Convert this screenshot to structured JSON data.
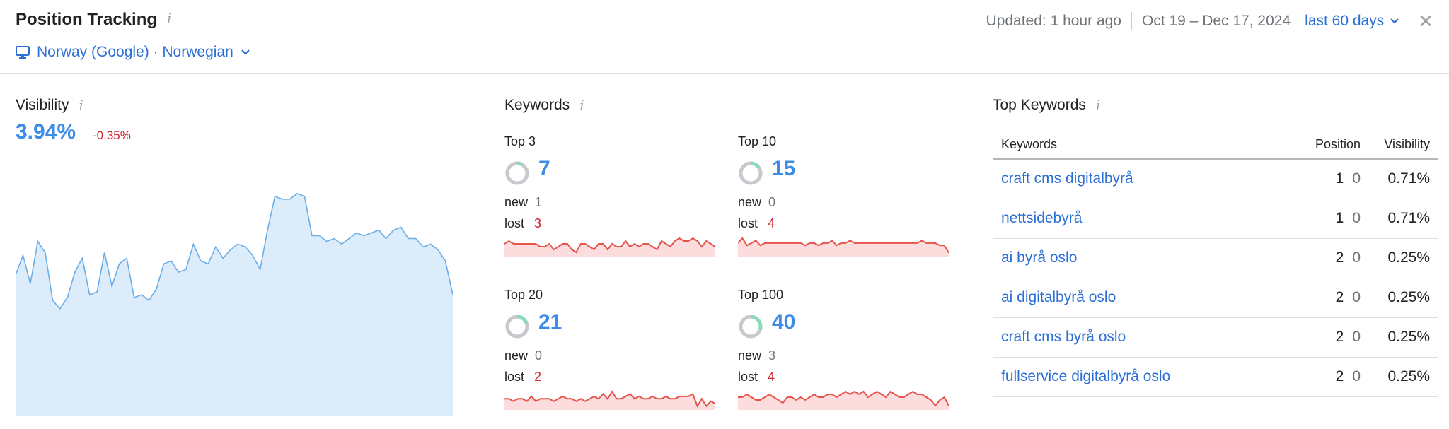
{
  "header": {
    "title": "Position Tracking",
    "location": "Norway (Google) · Norwegian",
    "updated": "Updated: 1 hour ago",
    "date_range": "Oct 19 – Dec 17, 2024",
    "period": "last 60 days"
  },
  "visibility": {
    "title": "Visibility",
    "value": "3.94%",
    "change": "-0.35%",
    "series": [
      5.0,
      5.7,
      4.7,
      6.2,
      5.8,
      4.1,
      3.8,
      4.2,
      5.1,
      5.6,
      4.3,
      4.4,
      5.8,
      4.6,
      5.4,
      5.6,
      4.2,
      4.3,
      4.1,
      4.5,
      5.4,
      5.5,
      5.1,
      5.2,
      6.1,
      5.5,
      5.4,
      6.0,
      5.6,
      5.9,
      6.1,
      6.0,
      5.7,
      5.2,
      6.6,
      7.8,
      7.7,
      7.7,
      7.9,
      7.8,
      6.4,
      6.4,
      6.2,
      6.3,
      6.1,
      6.3,
      6.5,
      6.4,
      6.5,
      6.6,
      6.3,
      6.6,
      6.7,
      6.3,
      6.3,
      6.0,
      6.1,
      5.9,
      5.5,
      4.3
    ]
  },
  "keywords": {
    "title": "Keywords",
    "new_label": "new",
    "lost_label": "lost",
    "blocks": [
      {
        "label": "Top 3",
        "count": "7",
        "new": "1",
        "lost": "3",
        "share": 0.08,
        "spark": [
          4,
          5,
          4,
          4,
          4,
          4,
          4,
          4,
          3,
          3,
          4,
          2,
          3,
          4,
          4,
          2,
          1,
          4,
          4,
          3,
          2,
          4,
          4,
          2,
          4,
          3,
          3,
          5,
          3,
          4,
          3,
          4,
          4,
          3,
          2,
          5,
          4,
          3,
          5,
          6,
          5,
          5,
          6,
          5,
          3,
          5,
          4,
          3
        ]
      },
      {
        "label": "Top 10",
        "count": "15",
        "new": "0",
        "lost": "4",
        "share": 0.15,
        "spark": [
          5,
          7,
          4,
          5,
          6,
          4,
          5,
          5,
          5,
          5,
          5,
          5,
          5,
          5,
          5,
          4,
          5,
          5,
          4,
          5,
          5,
          6,
          4,
          5,
          5,
          6,
          5,
          5,
          5,
          5,
          5,
          5,
          5,
          5,
          5,
          5,
          5,
          5,
          5,
          5,
          5,
          6,
          5,
          5,
          5,
          4,
          4,
          1
        ]
      },
      {
        "label": "Top 20",
        "count": "21",
        "new": "0",
        "lost": "2",
        "share": 0.2,
        "spark": [
          4,
          4,
          3,
          4,
          4,
          3,
          5,
          3,
          4,
          4,
          4,
          3,
          4,
          5,
          4,
          4,
          3,
          4,
          3,
          4,
          5,
          4,
          6,
          4,
          7,
          4,
          4,
          5,
          6,
          4,
          5,
          4,
          4,
          5,
          4,
          4,
          5,
          4,
          4,
          5,
          5,
          5,
          6,
          1,
          4,
          1,
          3,
          2
        ]
      },
      {
        "label": "Top 100",
        "count": "40",
        "new": "3",
        "lost": "4",
        "share": 0.3,
        "spark": [
          4,
          4,
          5,
          4,
          3,
          3,
          4,
          5,
          4,
          3,
          2,
          4,
          4,
          3,
          4,
          3,
          4,
          5,
          4,
          4,
          5,
          5,
          4,
          5,
          6,
          5,
          6,
          5,
          6,
          4,
          5,
          6,
          5,
          4,
          6,
          5,
          4,
          4,
          5,
          6,
          5,
          5,
          4,
          3,
          1,
          3,
          4,
          1
        ]
      }
    ]
  },
  "top_keywords": {
    "title": "Top Keywords",
    "columns": {
      "keyword": "Keywords",
      "position": "Position",
      "visibility": "Visibility"
    },
    "rows": [
      {
        "keyword": "craft cms digitalbyrå",
        "position": "1",
        "diff": "0",
        "visibility": "0.71%"
      },
      {
        "keyword": "nettsidebyrå",
        "position": "1",
        "diff": "0",
        "visibility": "0.71%"
      },
      {
        "keyword": "ai byrå oslo",
        "position": "2",
        "diff": "0",
        "visibility": "0.25%"
      },
      {
        "keyword": "ai digitalbyrå oslo",
        "position": "2",
        "diff": "0",
        "visibility": "0.25%"
      },
      {
        "keyword": "craft cms byrå oslo",
        "position": "2",
        "diff": "0",
        "visibility": "0.25%"
      },
      {
        "keyword": "fullservice digitalbyrå oslo",
        "position": "2",
        "diff": "0",
        "visibility": "0.25%"
      }
    ]
  },
  "colors": {
    "accent": "#2b6fd6",
    "value_blue": "#3d8ce8",
    "negative": "#d1242f",
    "visibility_fill": "#dcecfb",
    "visibility_line": "#6aade8",
    "spark_line": "#e5534b",
    "spark_fill": "#fcdcdc",
    "donut_track": "#c6c9cd",
    "donut_share": "#8fd8b8"
  }
}
